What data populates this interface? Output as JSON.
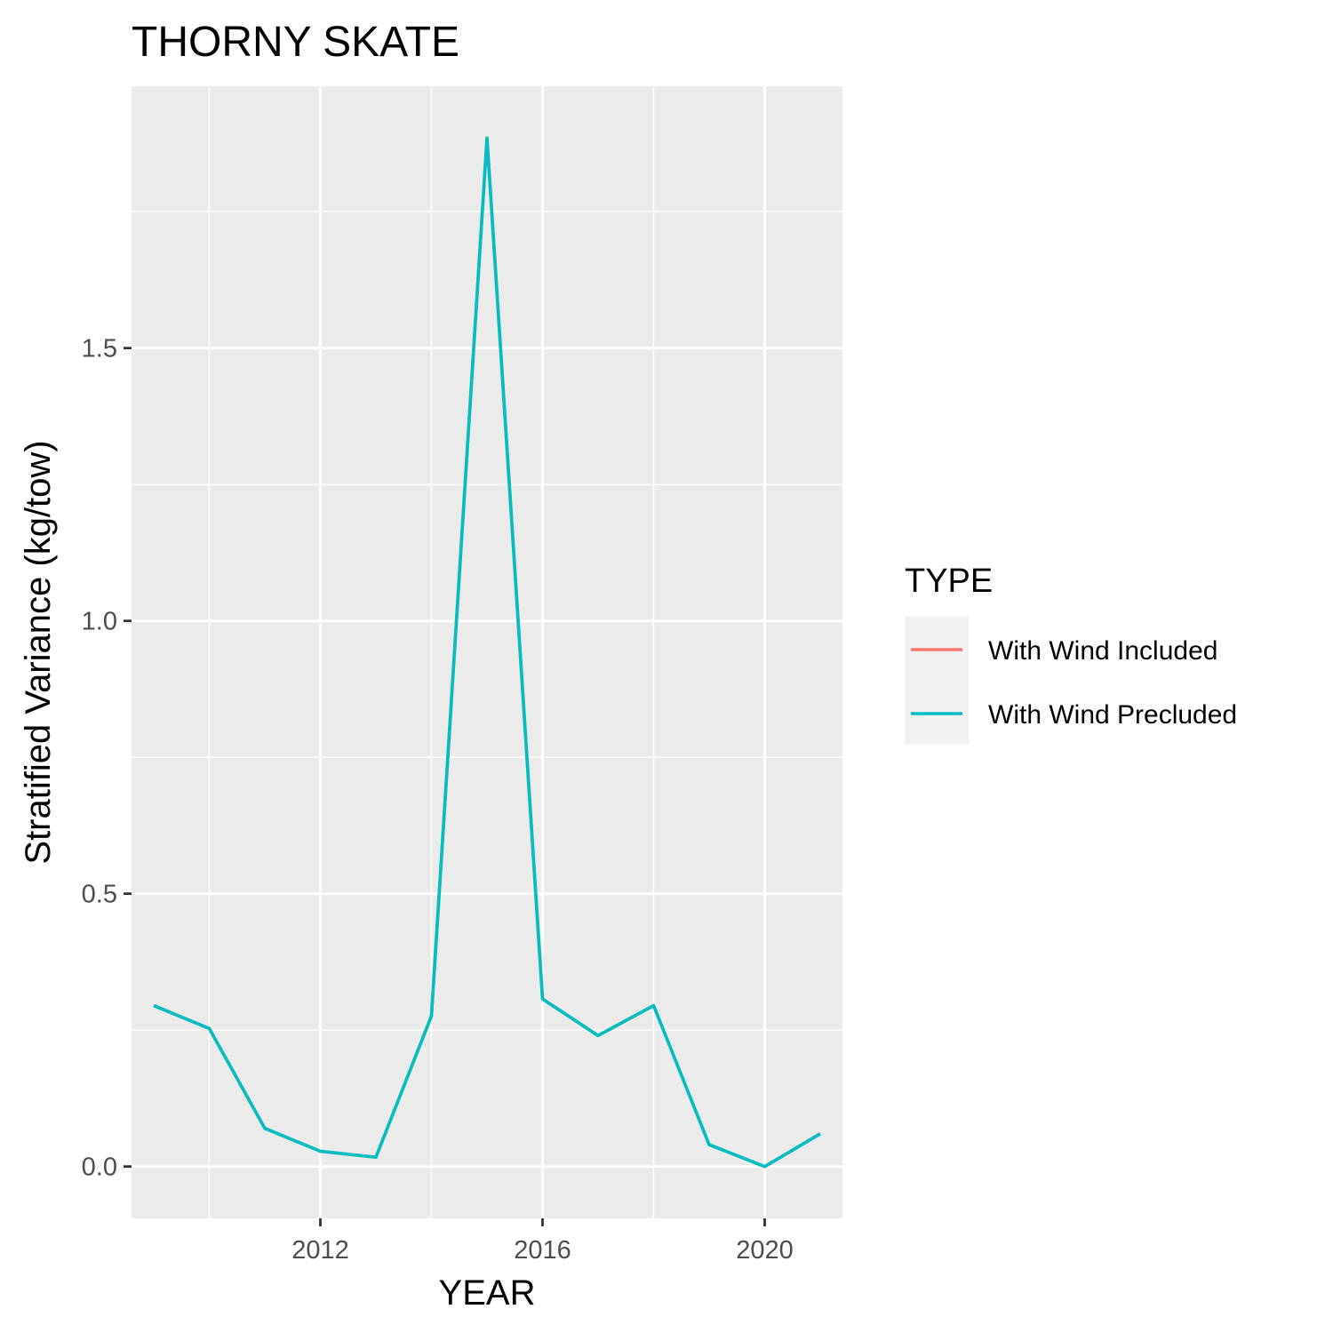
{
  "chart_data": {
    "type": "line",
    "title": "THORNY SKATE",
    "xlabel": "YEAR",
    "ylabel": "Stratified Variance (kg/tow)",
    "xlim": [
      2008.6,
      2021.4
    ],
    "ylim": [
      -0.095,
      1.98
    ],
    "x_ticks": [
      2012,
      2016,
      2020
    ],
    "x_tick_labels": [
      "2012",
      "2016",
      "2020"
    ],
    "y_ticks": [
      0.0,
      0.5,
      1.0,
      1.5
    ],
    "y_tick_labels": [
      "0.0",
      "0.5",
      "1.0",
      "1.5"
    ],
    "grid": true,
    "legend": {
      "title": "TYPE",
      "position": "right"
    },
    "x": [
      2009,
      2010,
      2011,
      2012,
      2013,
      2014,
      2015,
      2016,
      2017,
      2018,
      2019,
      2020,
      2021
    ],
    "series": [
      {
        "name": "With Wind Included",
        "color": "#F8766D",
        "values": [
          0.295,
          0.253,
          0.07,
          0.028,
          0.017,
          0.276,
          1.885,
          0.307,
          0.24,
          0.295,
          0.04,
          0.0,
          0.06
        ]
      },
      {
        "name": "With Wind Precluded",
        "color": "#00BFC4",
        "values": [
          0.295,
          0.253,
          0.07,
          0.028,
          0.017,
          0.276,
          1.885,
          0.307,
          0.24,
          0.295,
          0.04,
          0.0,
          0.06
        ]
      }
    ]
  }
}
